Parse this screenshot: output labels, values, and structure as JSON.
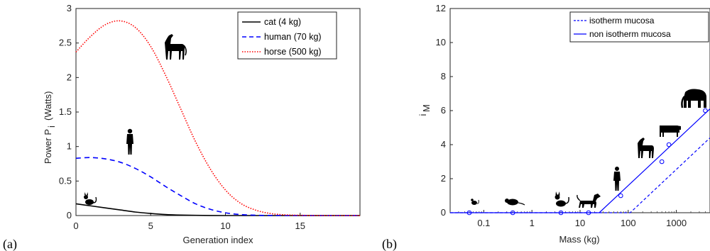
{
  "chart_data": [
    {
      "panel_label": "(a)",
      "type": "line",
      "xlabel": "Generation index",
      "ylabel": "Power P",
      "ylabel_sub": "i",
      "ylabel_unit": "(Watts)",
      "xlim": [
        0,
        19
      ],
      "ylim": [
        0,
        3
      ],
      "xticks": [
        0,
        5,
        10,
        15
      ],
      "yticks": [
        0,
        0.5,
        1,
        1.5,
        2,
        2.5,
        3
      ],
      "yticklabels": [
        "0",
        "0.5",
        "1",
        "1.5",
        "2",
        "2.5",
        "3"
      ],
      "legend_position": "top-right",
      "x": [
        0,
        1,
        2,
        3,
        4,
        5,
        6,
        7,
        8,
        9,
        10,
        11,
        12,
        13,
        14,
        15,
        16,
        17,
        18,
        19
      ],
      "series": [
        {
          "name": "cat (4 kg)",
          "color": "#000000",
          "dash": "solid",
          "values": [
            0.17,
            0.14,
            0.11,
            0.08,
            0.05,
            0.03,
            0.015,
            0.007,
            0.003,
            0.001,
            0,
            0,
            0,
            0,
            0,
            0,
            0,
            0,
            0,
            0
          ]
        },
        {
          "name": "human (70 kg)",
          "color": "#0000ff",
          "dash": "dashed",
          "values": [
            0.83,
            0.84,
            0.82,
            0.77,
            0.68,
            0.56,
            0.42,
            0.29,
            0.17,
            0.09,
            0.04,
            0.015,
            0.005,
            0.001,
            0,
            0,
            0,
            0,
            0,
            0
          ]
        },
        {
          "name": "horse (500 kg)",
          "color": "#ff0000",
          "dash": "dotted",
          "values": [
            2.37,
            2.6,
            2.77,
            2.82,
            2.72,
            2.45,
            2.03,
            1.55,
            1.07,
            0.67,
            0.37,
            0.18,
            0.08,
            0.03,
            0.01,
            0.004,
            0.001,
            0,
            0,
            0
          ]
        }
      ],
      "icons": [
        "cat-icon",
        "human-icon",
        "horse-icon"
      ]
    },
    {
      "panel_label": "(b)",
      "type": "line",
      "xlabel": "Mass (kg)",
      "ylabel": "i",
      "ylabel_sub": "M",
      "xscale": "log",
      "xlim": [
        0.02,
        5000
      ],
      "ylim": [
        0,
        12
      ],
      "xticks": [
        0.1,
        1,
        10,
        100,
        1000
      ],
      "xticklabels": [
        "0.1",
        "1",
        "10",
        "100",
        "1000"
      ],
      "yticks": [
        0,
        2,
        4,
        6,
        8,
        10,
        12
      ],
      "legend_position": "top-right",
      "series": [
        {
          "name": "isotherm mucosa",
          "color": "#0000ff",
          "dash": "dashed",
          "x": [
            0.02,
            110,
            5000
          ],
          "values": [
            0,
            0,
            4.4
          ]
        },
        {
          "name": "non isotherm mucosa",
          "color": "#0000ff",
          "dash": "solid",
          "x": [
            0.02,
            25,
            5000
          ],
          "values": [
            0,
            0,
            6.1
          ]
        },
        {
          "name": "",
          "color": "#0000ff",
          "marker": "circle",
          "x": [
            0.05,
            0.4,
            4,
            15,
            70,
            500,
            700,
            4000
          ],
          "values": [
            0,
            0,
            0,
            0,
            1,
            3,
            4,
            6
          ]
        }
      ],
      "icons": [
        "mouse-icon",
        "rat-icon",
        "cat-icon",
        "dog-icon",
        "human-icon",
        "horse-icon",
        "cow-icon",
        "elephant-icon"
      ]
    }
  ]
}
